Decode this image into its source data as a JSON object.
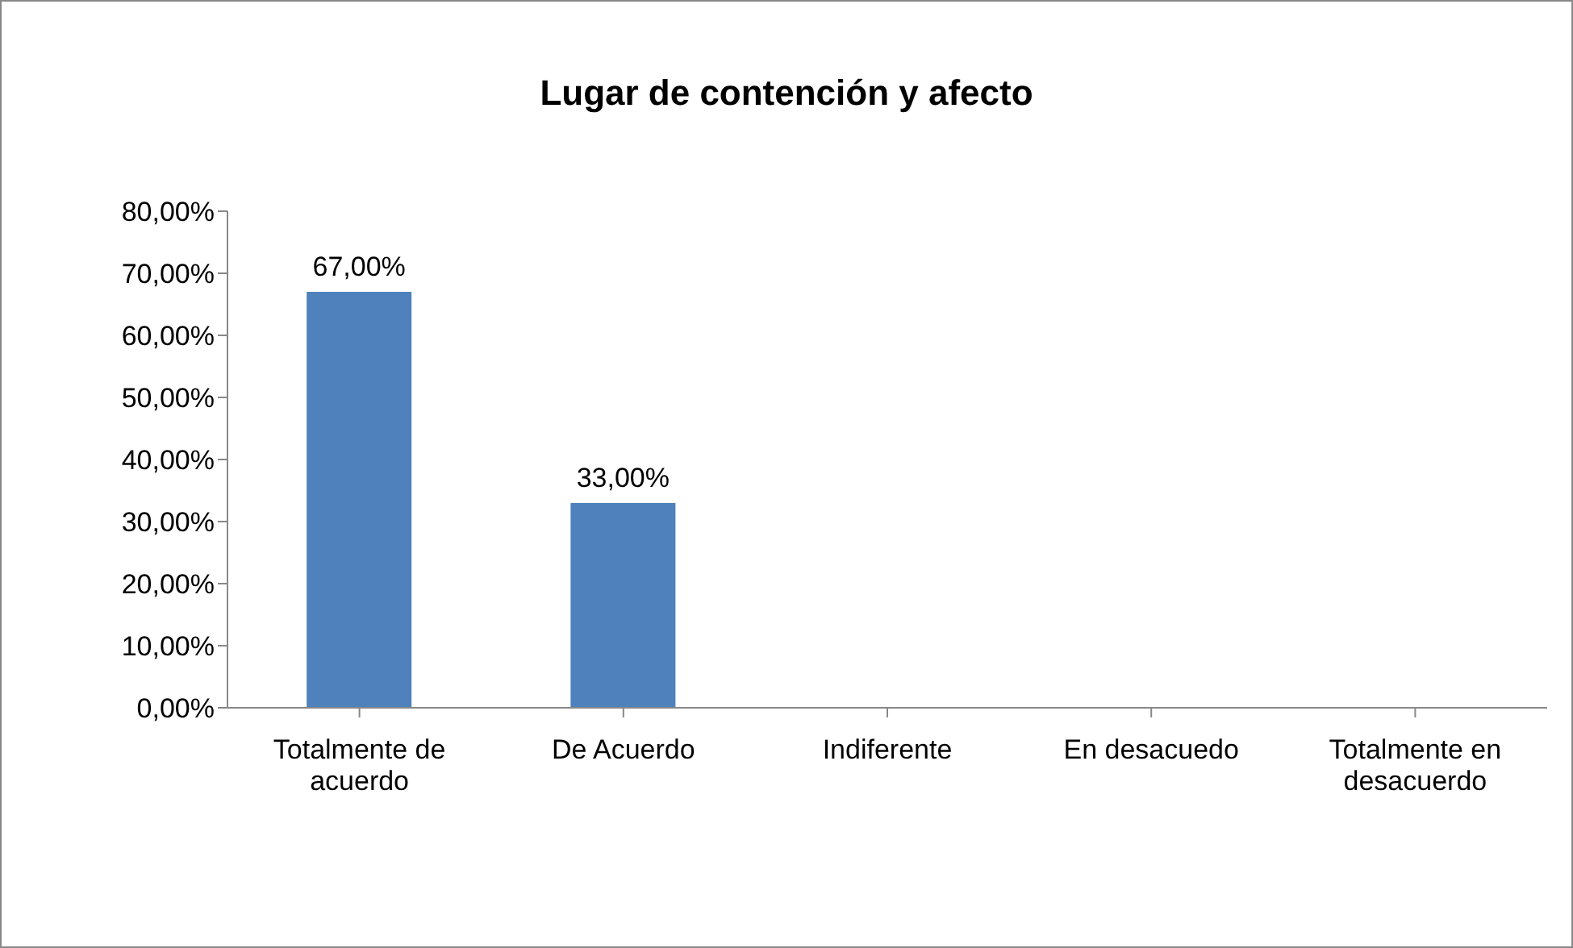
{
  "chart_data": {
    "type": "bar",
    "title": "Lugar de contención y afecto",
    "categories": [
      "Totalmente de acuerdo",
      "De Acuerdo",
      "Indiferente",
      "En desacuedo",
      "Totalmente en desacuerdo"
    ],
    "values": [
      67,
      33,
      0,
      0,
      0
    ],
    "value_labels": [
      "67,00%",
      "33,00%",
      null,
      null,
      null
    ],
    "color": "#4f81bd",
    "ylim": [
      0,
      80
    ],
    "yticks": [
      {
        "value": 0,
        "label": "0,00%"
      },
      {
        "value": 10,
        "label": "10,00%"
      },
      {
        "value": 20,
        "label": "20,00%"
      },
      {
        "value": 30,
        "label": "30,00%"
      },
      {
        "value": 40,
        "label": "40,00%"
      },
      {
        "value": 50,
        "label": "50,00%"
      },
      {
        "value": 60,
        "label": "60,00%"
      },
      {
        "value": 70,
        "label": "70,00%"
      },
      {
        "value": 80,
        "label": "80,00%"
      }
    ],
    "grid": false,
    "legend": false
  }
}
